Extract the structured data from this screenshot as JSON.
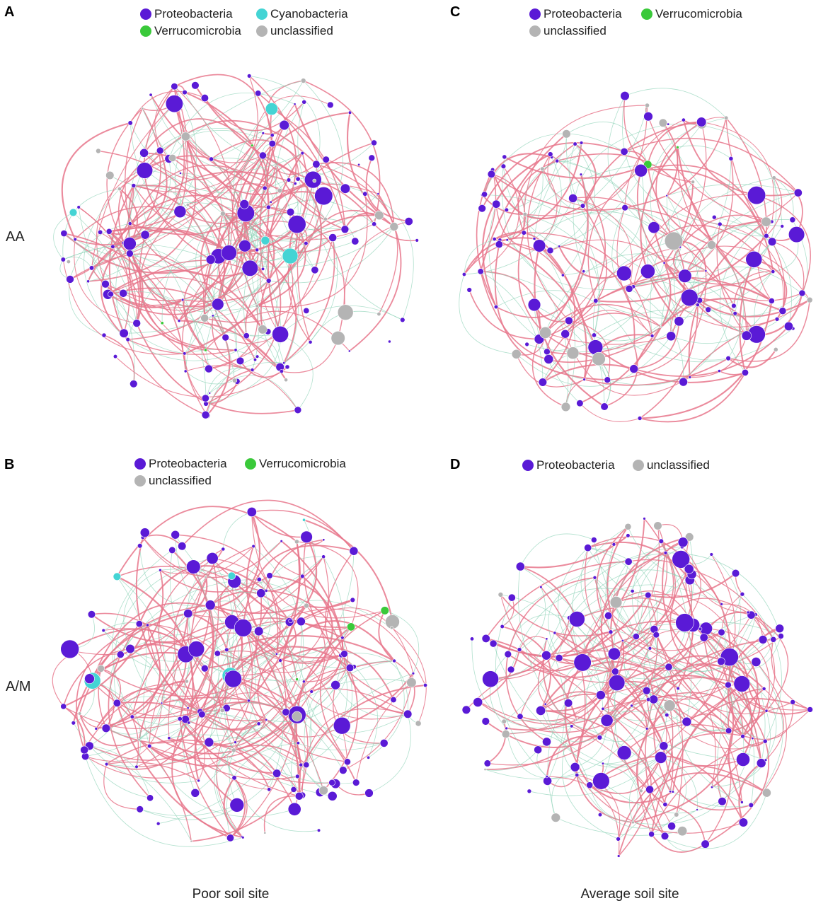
{
  "colors": {
    "Proteobacteria": "#5a1ad6",
    "Cyanobacteria": "#44d4d4",
    "Verrucomicrobia": "#3ac93a",
    "unclassified": "#b4b4b4",
    "edge_positive": "#e8778c",
    "edge_negative": "#8fd3b8"
  },
  "row_labels": {
    "top": "AA",
    "bottom": "A/M"
  },
  "bottom_labels": {
    "left": "Poor soil site",
    "right": "Average soil site"
  },
  "panels": [
    {
      "id": "A",
      "letter": "A",
      "legend": [
        "Proteobacteria",
        "Cyanobacteria",
        "Verrucomicrobia",
        "unclassified"
      ]
    },
    {
      "id": "C",
      "letter": "C",
      "legend": [
        "Proteobacteria",
        "Verrucomicrobia",
        "unclassified"
      ]
    },
    {
      "id": "B",
      "letter": "B",
      "legend": [
        "Proteobacteria",
        "Verrucomicrobia",
        "unclassified"
      ]
    },
    {
      "id": "D",
      "letter": "D",
      "legend": [
        "Proteobacteria",
        "unclassified"
      ]
    }
  ]
}
